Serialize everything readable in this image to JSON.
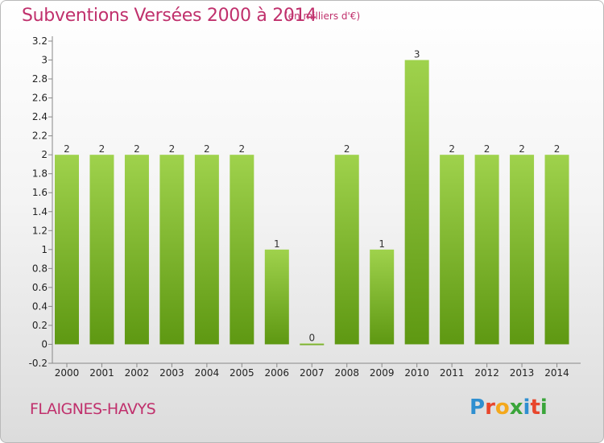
{
  "header": {
    "title": "Subventions Versées 2000 à 2014",
    "unit": "(en milliers d'€)"
  },
  "footer": {
    "city": "FLAIGNES-HAVYS",
    "logo": {
      "letters": [
        "P",
        "r",
        "o",
        "x",
        "i",
        "t",
        "i"
      ],
      "colors": [
        "#2f8fd0",
        "#e8462c",
        "#f4a81c",
        "#3aa53a",
        "#2f8fd0",
        "#e8462c",
        "#3aa53a"
      ]
    }
  },
  "colors": {
    "bar_top": "#9fd24c",
    "bar_bottom": "#5e9812",
    "title": "#c0306c"
  },
  "chart_data": {
    "type": "bar",
    "categories": [
      "2000",
      "2001",
      "2002",
      "2003",
      "2004",
      "2005",
      "2006",
      "2007",
      "2008",
      "2009",
      "2010",
      "2011",
      "2012",
      "2013",
      "2014"
    ],
    "values": [
      2,
      2,
      2,
      2,
      2,
      2,
      1,
      0,
      2,
      1,
      3,
      2,
      2,
      2,
      2
    ],
    "data_labels": [
      "2",
      "2",
      "2",
      "2",
      "2",
      "2",
      "1",
      "0",
      "2",
      "1",
      "3",
      "2",
      "2",
      "2",
      "2"
    ],
    "yticks": [
      -0.2,
      0,
      0.2,
      0.4,
      0.6,
      0.8,
      1,
      1.2,
      1.4,
      1.6,
      1.8,
      2,
      2.2,
      2.4,
      2.6,
      2.8,
      3,
      3.2
    ],
    "ytick_labels": [
      "-0.2",
      "0",
      "0.2",
      "0.4",
      "0.6",
      "0.8",
      "1",
      "1.2",
      "1.4",
      "1.6",
      "1.8",
      "2",
      "2.2",
      "2.4",
      "2.6",
      "2.8",
      "3",
      "3.2"
    ],
    "ylim": [
      -0.2,
      3.2
    ],
    "grid": false,
    "legend": "none"
  }
}
